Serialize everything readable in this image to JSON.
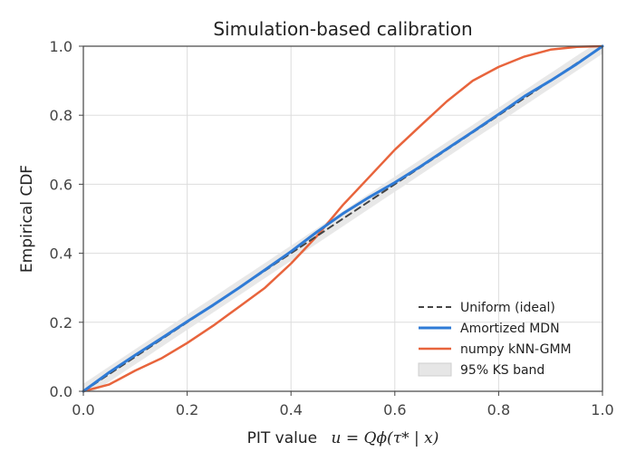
{
  "chart_data": {
    "type": "line",
    "title": "Simulation-based calibration",
    "xlabel_prefix": "PIT value",
    "xlabel_math": "u = Qϕ(τ* | x)",
    "ylabel": "Empirical CDF",
    "xlim": [
      0,
      1
    ],
    "ylim": [
      0,
      1
    ],
    "xticks": [
      "0.0",
      "0.2",
      "0.4",
      "0.6",
      "0.8",
      "1.0"
    ],
    "yticks": [
      "0.0",
      "0.2",
      "0.4",
      "0.6",
      "0.8",
      "1.0"
    ],
    "grid": true,
    "legend_position": "bottom-right",
    "ks_band_halfwidth": 0.022,
    "series": [
      {
        "name": "Uniform (ideal)",
        "color": "#444444",
        "style": "dashed",
        "x": [
          0,
          1
        ],
        "y": [
          0,
          1
        ]
      },
      {
        "name": "Amortized MDN",
        "color": "#2f7bd6",
        "style": "solid",
        "x": [
          0,
          0.05,
          0.1,
          0.15,
          0.2,
          0.25,
          0.3,
          0.35,
          0.4,
          0.45,
          0.5,
          0.55,
          0.6,
          0.65,
          0.7,
          0.75,
          0.8,
          0.85,
          0.9,
          0.95,
          1.0
        ],
        "y": [
          0,
          0.055,
          0.105,
          0.153,
          0.202,
          0.25,
          0.3,
          0.352,
          0.405,
          0.462,
          0.515,
          0.562,
          0.605,
          0.652,
          0.702,
          0.752,
          0.803,
          0.855,
          0.9,
          0.948,
          1.0
        ]
      },
      {
        "name": "numpy kNN-GMM",
        "color": "#e8643c",
        "style": "solid",
        "x": [
          0,
          0.05,
          0.1,
          0.15,
          0.2,
          0.25,
          0.3,
          0.35,
          0.4,
          0.45,
          0.5,
          0.55,
          0.6,
          0.65,
          0.7,
          0.75,
          0.8,
          0.85,
          0.9,
          0.95,
          1.0
        ],
        "y": [
          0,
          0.02,
          0.06,
          0.095,
          0.14,
          0.19,
          0.245,
          0.3,
          0.37,
          0.45,
          0.54,
          0.62,
          0.7,
          0.77,
          0.84,
          0.9,
          0.94,
          0.97,
          0.99,
          0.998,
          1.0
        ]
      }
    ],
    "band": {
      "name": "95% KS band",
      "color": "#d9d9d9"
    }
  }
}
